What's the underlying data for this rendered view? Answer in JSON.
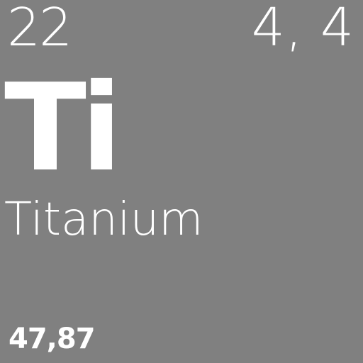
{
  "element": {
    "atomic_number": "22",
    "group_period": "4, 4",
    "symbol": "Ti",
    "name": "Titanium",
    "atomic_mass": "47,87"
  },
  "colors": {
    "background": "#808080",
    "text": "#ffffff"
  }
}
